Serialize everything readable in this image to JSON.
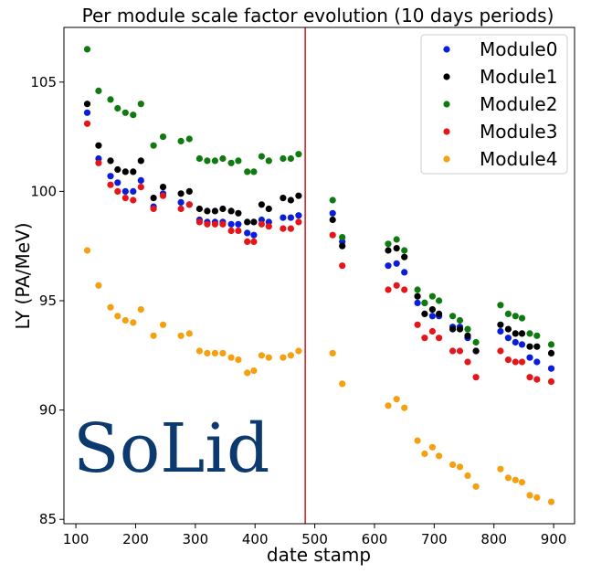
{
  "chart_data": {
    "type": "scatter",
    "title": "Per module scale factor evolution (10 days periods)",
    "xlabel": "date stamp",
    "ylabel": "LY (PA/MeV)",
    "xlim": [
      80,
      935
    ],
    "ylim": [
      84.8,
      107.5
    ],
    "xticks": [
      100,
      200,
      300,
      400,
      500,
      600,
      700,
      800,
      900
    ],
    "yticks": [
      85,
      90,
      95,
      100,
      105
    ],
    "legend_position": "top-right",
    "logo": "SoLid",
    "vline": {
      "x": 484,
      "color": "#d62728"
    },
    "series": [
      {
        "name": "Module0",
        "color": "#0a1ddb",
        "points": [
          [
            119,
            103.6
          ],
          [
            138,
            101.5
          ],
          [
            158,
            100.7
          ],
          [
            170,
            100.4
          ],
          [
            183,
            100.0
          ],
          [
            196,
            100.0
          ],
          [
            209,
            100.5
          ],
          [
            230,
            99.3
          ],
          [
            246,
            99.9
          ],
          [
            276,
            99.5
          ],
          [
            290,
            99.4
          ],
          [
            307,
            98.7
          ],
          [
            320,
            98.6
          ],
          [
            333,
            98.6
          ],
          [
            346,
            98.6
          ],
          [
            360,
            98.5
          ],
          [
            372,
            98.5
          ],
          [
            387,
            98.1
          ],
          [
            398,
            98.0
          ],
          [
            411,
            98.7
          ],
          [
            423,
            98.6
          ],
          [
            447,
            98.8
          ],
          [
            460,
            98.8
          ],
          [
            473,
            98.9
          ],
          [
            530,
            99.0
          ],
          [
            546,
            97.7
          ],
          [
            623,
            96.6
          ],
          [
            637,
            96.7
          ],
          [
            650,
            96.3
          ],
          [
            672,
            94.9
          ],
          [
            684,
            94.9
          ],
          [
            697,
            94.3
          ],
          [
            708,
            94.3
          ],
          [
            731,
            93.8
          ],
          [
            743,
            93.8
          ],
          [
            756,
            93.3
          ],
          [
            770,
            92.7
          ],
          [
            811,
            93.6
          ],
          [
            824,
            93.3
          ],
          [
            836,
            93.1
          ],
          [
            847,
            93.0
          ],
          [
            860,
            92.4
          ],
          [
            872,
            92.2
          ],
          [
            896,
            91.9
          ]
        ]
      },
      {
        "name": "Module1",
        "color": "#000000",
        "points": [
          [
            119,
            104.0
          ],
          [
            138,
            102.1
          ],
          [
            158,
            101.4
          ],
          [
            170,
            101.0
          ],
          [
            183,
            100.9
          ],
          [
            196,
            100.9
          ],
          [
            209,
            101.4
          ],
          [
            230,
            99.7
          ],
          [
            246,
            100.2
          ],
          [
            276,
            99.9
          ],
          [
            290,
            100.0
          ],
          [
            307,
            99.2
          ],
          [
            320,
            99.1
          ],
          [
            333,
            99.1
          ],
          [
            346,
            99.2
          ],
          [
            360,
            99.1
          ],
          [
            372,
            99.0
          ],
          [
            387,
            98.6
          ],
          [
            398,
            98.6
          ],
          [
            411,
            99.4
          ],
          [
            423,
            99.2
          ],
          [
            447,
            99.7
          ],
          [
            460,
            99.6
          ],
          [
            473,
            99.8
          ],
          [
            530,
            98.7
          ],
          [
            546,
            97.5
          ],
          [
            623,
            97.3
          ],
          [
            637,
            97.4
          ],
          [
            650,
            97.0
          ],
          [
            672,
            95.2
          ],
          [
            684,
            94.4
          ],
          [
            697,
            94.6
          ],
          [
            708,
            94.4
          ],
          [
            731,
            93.7
          ],
          [
            743,
            93.7
          ],
          [
            756,
            93.4
          ],
          [
            770,
            92.7
          ],
          [
            811,
            93.9
          ],
          [
            824,
            93.7
          ],
          [
            836,
            93.5
          ],
          [
            847,
            93.5
          ],
          [
            860,
            92.9
          ],
          [
            872,
            92.9
          ],
          [
            896,
            92.6
          ]
        ]
      },
      {
        "name": "Module2",
        "color": "#0f7a0f",
        "points": [
          [
            119,
            106.5
          ],
          [
            138,
            104.6
          ],
          [
            158,
            104.2
          ],
          [
            170,
            103.8
          ],
          [
            183,
            103.6
          ],
          [
            196,
            103.5
          ],
          [
            209,
            104.0
          ],
          [
            230,
            102.1
          ],
          [
            246,
            102.5
          ],
          [
            276,
            102.3
          ],
          [
            290,
            102.4
          ],
          [
            307,
            101.5
          ],
          [
            320,
            101.4
          ],
          [
            333,
            101.4
          ],
          [
            346,
            101.5
          ],
          [
            360,
            101.3
          ],
          [
            372,
            101.4
          ],
          [
            387,
            100.9
          ],
          [
            398,
            100.9
          ],
          [
            411,
            101.6
          ],
          [
            423,
            101.4
          ],
          [
            447,
            101.5
          ],
          [
            460,
            101.5
          ],
          [
            473,
            101.7
          ],
          [
            530,
            99.6
          ],
          [
            546,
            97.9
          ],
          [
            623,
            97.6
          ],
          [
            637,
            97.8
          ],
          [
            650,
            97.3
          ],
          [
            672,
            95.5
          ],
          [
            684,
            94.9
          ],
          [
            697,
            95.2
          ],
          [
            708,
            95.0
          ],
          [
            731,
            94.3
          ],
          [
            743,
            94.1
          ],
          [
            756,
            93.7
          ],
          [
            770,
            93.1
          ],
          [
            811,
            94.8
          ],
          [
            824,
            94.4
          ],
          [
            836,
            94.3
          ],
          [
            847,
            94.2
          ],
          [
            860,
            93.5
          ],
          [
            872,
            93.4
          ],
          [
            896,
            93.0
          ]
        ]
      },
      {
        "name": "Module3",
        "color": "#e3161a",
        "points": [
          [
            119,
            103.1
          ],
          [
            138,
            101.3
          ],
          [
            158,
            100.3
          ],
          [
            170,
            100.0
          ],
          [
            183,
            99.7
          ],
          [
            196,
            99.6
          ],
          [
            209,
            100.2
          ],
          [
            230,
            99.2
          ],
          [
            246,
            99.8
          ],
          [
            276,
            99.2
          ],
          [
            290,
            99.4
          ],
          [
            307,
            98.6
          ],
          [
            320,
            98.5
          ],
          [
            333,
            98.5
          ],
          [
            346,
            98.5
          ],
          [
            360,
            98.2
          ],
          [
            372,
            98.2
          ],
          [
            387,
            97.7
          ],
          [
            398,
            97.7
          ],
          [
            411,
            98.5
          ],
          [
            423,
            98.4
          ],
          [
            447,
            98.3
          ],
          [
            460,
            98.3
          ],
          [
            473,
            98.6
          ],
          [
            530,
            98.0
          ],
          [
            546,
            96.6
          ],
          [
            623,
            95.5
          ],
          [
            637,
            95.7
          ],
          [
            650,
            95.5
          ],
          [
            672,
            93.9
          ],
          [
            684,
            93.3
          ],
          [
            697,
            93.6
          ],
          [
            708,
            93.3
          ],
          [
            731,
            92.7
          ],
          [
            743,
            92.7
          ],
          [
            756,
            92.2
          ],
          [
            770,
            91.5
          ],
          [
            811,
            92.7
          ],
          [
            824,
            92.3
          ],
          [
            836,
            92.2
          ],
          [
            847,
            92.2
          ],
          [
            860,
            91.5
          ],
          [
            872,
            91.4
          ],
          [
            896,
            91.3
          ]
        ]
      },
      {
        "name": "Module4",
        "color": "#f5a011",
        "points": [
          [
            119,
            97.3
          ],
          [
            138,
            95.7
          ],
          [
            158,
            94.7
          ],
          [
            170,
            94.3
          ],
          [
            183,
            94.1
          ],
          [
            196,
            94.0
          ],
          [
            209,
            94.6
          ],
          [
            230,
            93.4
          ],
          [
            246,
            93.9
          ],
          [
            276,
            93.4
          ],
          [
            290,
            93.5
          ],
          [
            307,
            92.7
          ],
          [
            320,
            92.6
          ],
          [
            333,
            92.6
          ],
          [
            346,
            92.6
          ],
          [
            360,
            92.4
          ],
          [
            372,
            92.3
          ],
          [
            387,
            91.7
          ],
          [
            398,
            91.8
          ],
          [
            411,
            92.5
          ],
          [
            423,
            92.4
          ],
          [
            447,
            92.4
          ],
          [
            460,
            92.5
          ],
          [
            473,
            92.7
          ],
          [
            530,
            92.6
          ],
          [
            546,
            91.2
          ],
          [
            623,
            90.2
          ],
          [
            637,
            90.5
          ],
          [
            650,
            90.1
          ],
          [
            672,
            88.6
          ],
          [
            684,
            88.0
          ],
          [
            697,
            88.3
          ],
          [
            708,
            87.9
          ],
          [
            731,
            87.5
          ],
          [
            743,
            87.4
          ],
          [
            756,
            87.0
          ],
          [
            770,
            86.5
          ],
          [
            811,
            87.3
          ],
          [
            824,
            86.9
          ],
          [
            836,
            86.8
          ],
          [
            847,
            86.7
          ],
          [
            860,
            86.1
          ],
          [
            872,
            86.0
          ],
          [
            896,
            85.8
          ]
        ]
      }
    ]
  }
}
